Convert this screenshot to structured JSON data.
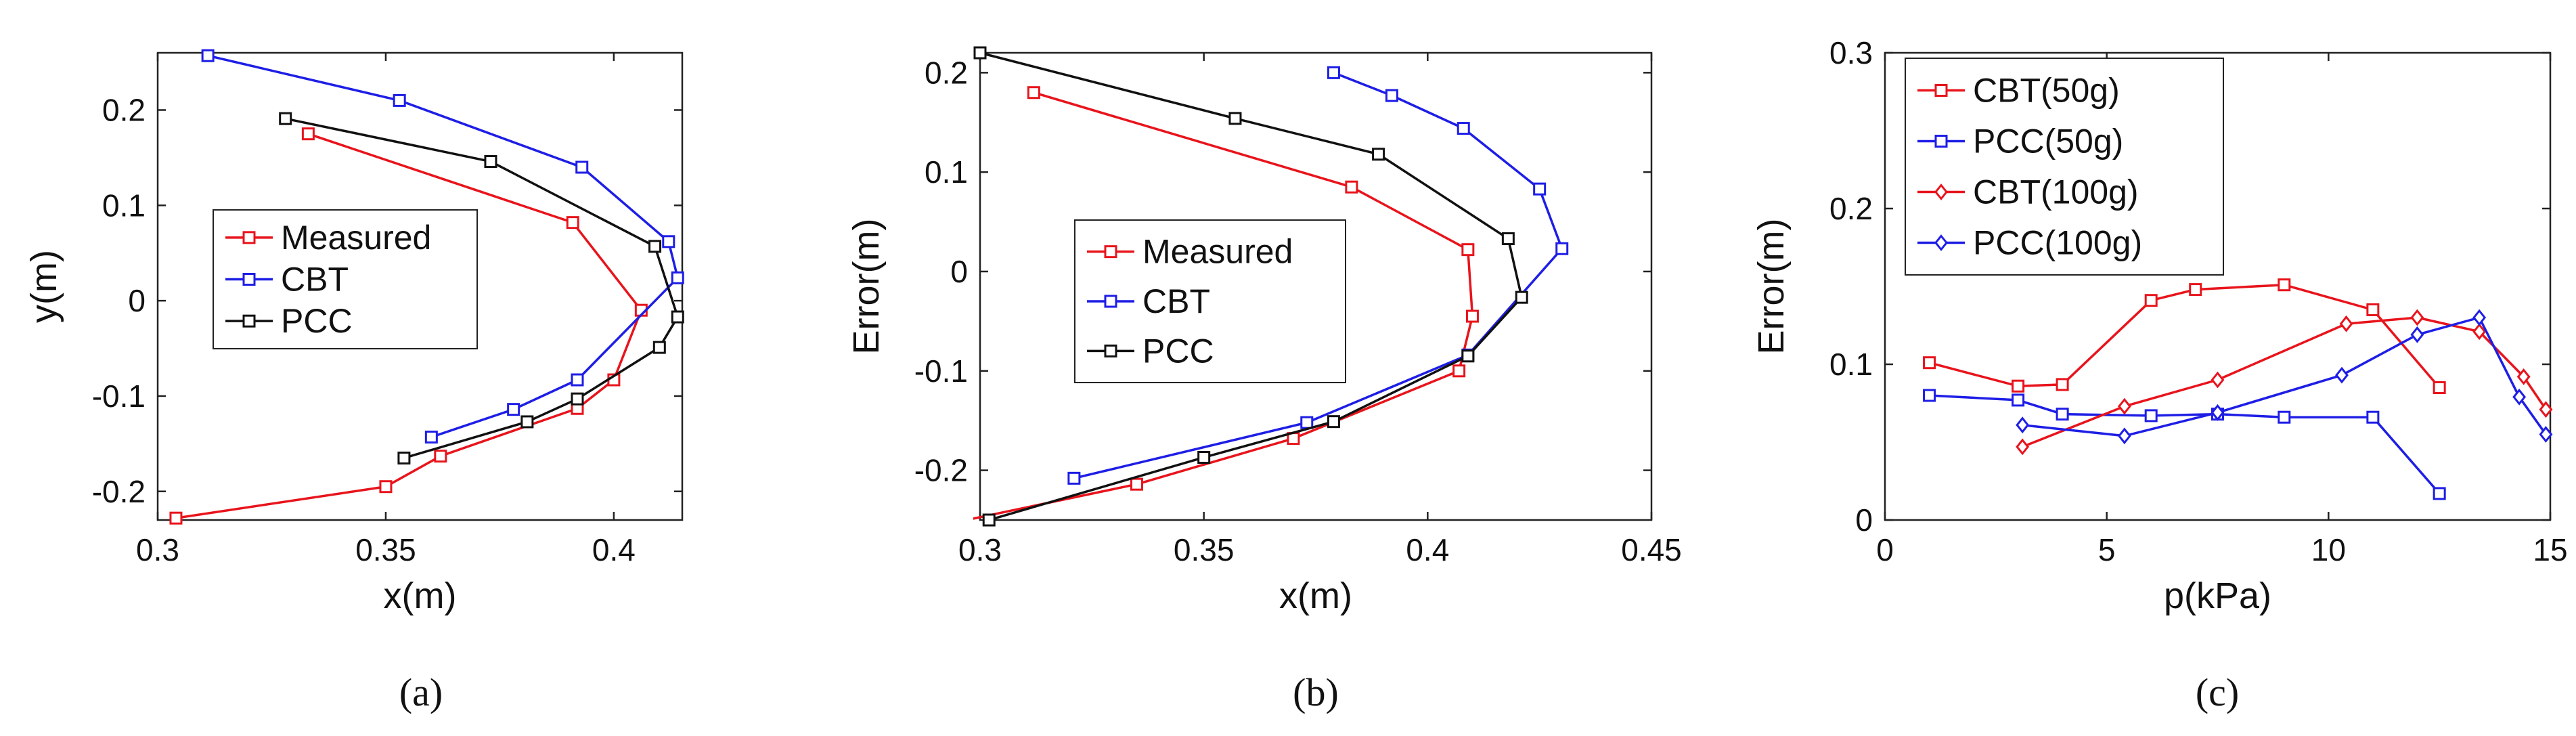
{
  "colors": {
    "red": "#e8141c",
    "blue": "#1e1ee6",
    "black": "#111111"
  },
  "chart_data": [
    {
      "type": "line",
      "caption": "(a)",
      "xlabel": "x(m)",
      "ylabel": "y(m)",
      "xlim": [
        0.3,
        0.415
      ],
      "ylim": [
        -0.23,
        0.26
      ],
      "xticks": [
        0.3,
        0.35,
        0.4
      ],
      "xtick_labels": [
        "0.3",
        "0.35",
        "0.4"
      ],
      "yticks": [
        -0.2,
        -0.1,
        0,
        0.1,
        0.2
      ],
      "ytick_labels": [
        "-0.2",
        "-0.1",
        "0",
        "0.1",
        "0.2"
      ],
      "legend_position": "center-left",
      "series": [
        {
          "name": "Measured",
          "color": "red",
          "marker": "square",
          "x": [
            0.333,
            0.391,
            0.406,
            0.4,
            0.392,
            0.362,
            0.35,
            0.304
          ],
          "y": [
            0.175,
            0.082,
            -0.01,
            -0.083,
            -0.113,
            -0.163,
            -0.195,
            -0.228
          ]
        },
        {
          "name": "CBT",
          "color": "blue",
          "marker": "square",
          "x": [
            0.311,
            0.353,
            0.393,
            0.412,
            0.414,
            0.392,
            0.378,
            0.36
          ],
          "y": [
            0.257,
            0.21,
            0.14,
            0.062,
            0.024,
            -0.083,
            -0.114,
            -0.143
          ]
        },
        {
          "name": "PCC",
          "color": "black",
          "marker": "square",
          "x": [
            0.328,
            0.373,
            0.409,
            0.414,
            0.41,
            0.392,
            0.381,
            0.354
          ],
          "y": [
            0.191,
            0.146,
            0.057,
            -0.017,
            -0.049,
            -0.103,
            -0.127,
            -0.165
          ]
        }
      ]
    },
    {
      "type": "line",
      "caption": "(b)",
      "xlabel": "x(m)",
      "ylabel": "Error(m)",
      "xlim": [
        0.3,
        0.45
      ],
      "ylim": [
        -0.25,
        0.22
      ],
      "xticks": [
        0.3,
        0.35,
        0.4,
        0.45
      ],
      "xtick_labels": [
        "0.3",
        "0.35",
        "0.4",
        "0.45"
      ],
      "yticks": [
        -0.2,
        -0.1,
        0,
        0.1,
        0.2
      ],
      "ytick_labels": [
        "-0.2",
        "-0.1",
        "0",
        "0.1",
        "0.2"
      ],
      "legend_position": "center-left",
      "series": [
        {
          "name": "Measured",
          "color": "red",
          "marker": "square",
          "x": [
            0.312,
            0.383,
            0.409,
            0.41,
            0.407,
            0.37,
            0.335,
            0.297
          ],
          "y": [
            0.18,
            0.085,
            0.022,
            -0.045,
            -0.1,
            -0.168,
            -0.214,
            -0.25
          ]
        },
        {
          "name": "CBT",
          "color": "blue",
          "marker": "square",
          "x": [
            0.379,
            0.392,
            0.408,
            0.425,
            0.43,
            0.409,
            0.373,
            0.321
          ],
          "y": [
            0.2,
            0.177,
            0.144,
            0.083,
            0.023,
            -0.084,
            -0.152,
            -0.208
          ]
        },
        {
          "name": "PCC",
          "color": "black",
          "marker": "square",
          "x": [
            0.3,
            0.357,
            0.389,
            0.418,
            0.421,
            0.409,
            0.379,
            0.35,
            0.302
          ],
          "y": [
            0.22,
            0.154,
            0.118,
            0.033,
            -0.026,
            -0.085,
            -0.151,
            -0.187,
            -0.25
          ]
        }
      ]
    },
    {
      "type": "line",
      "caption": "(c)",
      "xlabel": "p(kPa)",
      "ylabel": "Error(m)",
      "xlim": [
        0,
        15
      ],
      "ylim": [
        0,
        0.3
      ],
      "xticks": [
        0,
        5,
        10,
        15
      ],
      "xtick_labels": [
        "0",
        "5",
        "10",
        "15"
      ],
      "yticks": [
        0,
        0.1,
        0.2,
        0.3
      ],
      "ytick_labels": [
        "0",
        "0.1",
        "0.2",
        "0.3"
      ],
      "legend_position": "top-left",
      "series": [
        {
          "name": "CBT(50g)",
          "color": "red",
          "marker": "square",
          "x": [
            1,
            3,
            4,
            6,
            7,
            9,
            11,
            12.5
          ],
          "y": [
            0.101,
            0.086,
            0.087,
            0.141,
            0.148,
            0.151,
            0.135,
            0.085
          ]
        },
        {
          "name": "PCC(50g)",
          "color": "blue",
          "marker": "square",
          "x": [
            1,
            3,
            4,
            6,
            7.5,
            9,
            11,
            12.5
          ],
          "y": [
            0.08,
            0.077,
            0.068,
            0.067,
            0.068,
            0.066,
            0.066,
            0.017
          ]
        },
        {
          "name": "CBT(100g)",
          "color": "red",
          "marker": "diamond",
          "x": [
            3.1,
            5.4,
            7.5,
            10.4,
            12,
            13.4,
            14.4,
            14.9
          ],
          "y": [
            0.047,
            0.073,
            0.09,
            0.126,
            0.13,
            0.121,
            0.092,
            0.071
          ]
        },
        {
          "name": "PCC(100g)",
          "color": "blue",
          "marker": "diamond",
          "x": [
            3.1,
            5.4,
            7.5,
            10.3,
            12,
            13.4,
            14.3,
            14.9
          ],
          "y": [
            0.061,
            0.054,
            0.069,
            0.093,
            0.119,
            0.13,
            0.079,
            0.055
          ]
        }
      ]
    }
  ]
}
